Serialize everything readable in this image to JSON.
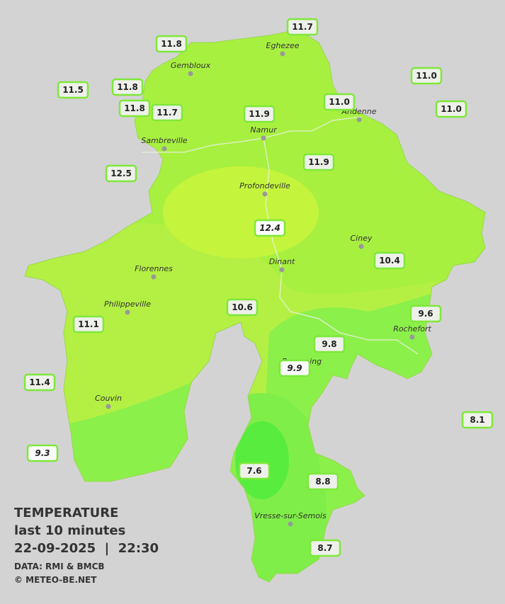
{
  "map": {
    "stations": [
      {
        "label": "11.7"
      },
      {
        "label": "11.8"
      },
      {
        "label": "11.5"
      },
      {
        "label": "11.8"
      },
      {
        "label": "11.8"
      },
      {
        "label": "11.7"
      },
      {
        "label": "11.9"
      },
      {
        "label": "11.0"
      },
      {
        "label": "11.0"
      },
      {
        "label": "11.0"
      },
      {
        "label": "11.9"
      },
      {
        "label": "12.5"
      },
      {
        "label": "12.4"
      },
      {
        "label": "10.4"
      },
      {
        "label": "10.6"
      },
      {
        "label": "11.1"
      },
      {
        "label": "9.6"
      },
      {
        "label": "9.8"
      },
      {
        "label": "9.9"
      },
      {
        "label": "11.4"
      },
      {
        "label": "8.1"
      },
      {
        "label": "9.3"
      },
      {
        "label": "7.6"
      },
      {
        "label": "8.8"
      },
      {
        "label": "8.7"
      }
    ],
    "cities": [
      "Eghezee",
      "Gembloux",
      "Andenne",
      "Namur",
      "Sambreville",
      "Profondeville",
      "Ciney",
      "Dinant",
      "Florennes",
      "Philippeville",
      "Rochefort",
      "Beauraing",
      "Couvin",
      "Vresse-sur-Semois"
    ],
    "legend": {
      "title": "TEMPERATURE",
      "subtitle": "last 10 minutes",
      "datetime": "22-09-2025  |  22:30",
      "source": "DATA: RMI & BMCB",
      "copyright": "© METEO-BE.NET"
    }
  }
}
